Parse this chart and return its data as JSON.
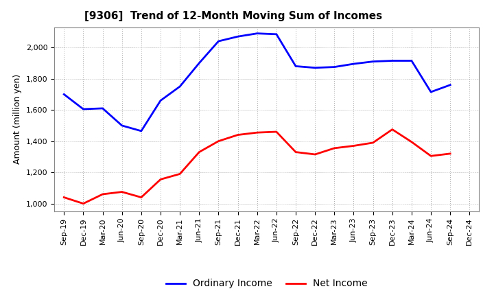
{
  "title": "[9306]  Trend of 12-Month Moving Sum of Incomes",
  "ylabel": "Amount (million yen)",
  "xlabels": [
    "Sep-19",
    "Dec-19",
    "Mar-20",
    "Jun-20",
    "Sep-20",
    "Dec-20",
    "Mar-21",
    "Jun-21",
    "Sep-21",
    "Dec-21",
    "Mar-22",
    "Jun-22",
    "Sep-22",
    "Dec-22",
    "Mar-23",
    "Jun-23",
    "Sep-23",
    "Dec-23",
    "Mar-24",
    "Jun-24",
    "Sep-24",
    "Dec-24"
  ],
  "ordinary_income": [
    1700,
    1605,
    1610,
    1500,
    1465,
    1660,
    1750,
    1900,
    2040,
    2070,
    2090,
    2085,
    1880,
    1870,
    1875,
    1895,
    1910,
    1915,
    1915,
    1715,
    1760,
    null
  ],
  "net_income": [
    1040,
    1000,
    1060,
    1075,
    1040,
    1155,
    1190,
    1330,
    1400,
    1440,
    1455,
    1460,
    1330,
    1315,
    1355,
    1370,
    1390,
    1475,
    1395,
    1305,
    1320,
    null
  ],
  "ordinary_color": "#0000FF",
  "net_color": "#FF0000",
  "ylim": [
    950,
    2130
  ],
  "yticks": [
    1000,
    1200,
    1400,
    1600,
    1800,
    2000
  ],
  "grid_color": "#aaaaaa",
  "background_color": "#ffffff",
  "title_fontsize": 11,
  "axis_fontsize": 9,
  "tick_fontsize": 8,
  "legend_fontsize": 10,
  "line_width": 2.0
}
